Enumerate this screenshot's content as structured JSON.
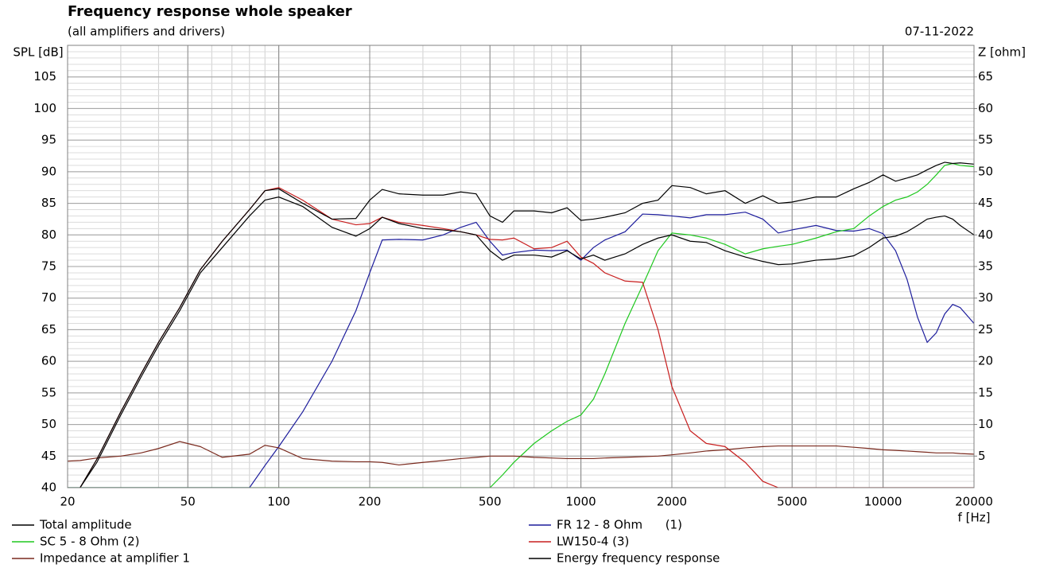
{
  "chart_data": {
    "type": "line",
    "title": "Frequency response whole speaker",
    "subtitle": "(all amplifiers and drivers)",
    "date": "07-11-2022",
    "x_label": "f [Hz]",
    "y_label": "SPL [dB]",
    "y2_label": "Z [ohm]",
    "log_x": true,
    "grid": true,
    "legend": "bottom",
    "xlim": [
      20,
      20000
    ],
    "xticks": [
      20,
      50,
      100,
      200,
      500,
      1000,
      2000,
      5000,
      10000,
      20000
    ],
    "ylim": [
      40,
      110
    ],
    "yticks": [
      40,
      45,
      50,
      55,
      60,
      65,
      70,
      75,
      80,
      85,
      90,
      95,
      100,
      105
    ],
    "y2lim": [
      0,
      70
    ],
    "y2ticks": [
      5,
      10,
      15,
      20,
      25,
      30,
      35,
      40,
      45,
      50,
      55,
      60,
      65
    ],
    "x": [
      20,
      22,
      25,
      30,
      35,
      40,
      47,
      55,
      65,
      80,
      90,
      100,
      120,
      150,
      180,
      200,
      220,
      250,
      300,
      350,
      400,
      450,
      500,
      550,
      600,
      700,
      800,
      900,
      1000,
      1100,
      1200,
      1400,
      1600,
      1800,
      2000,
      2300,
      2600,
      3000,
      3500,
      4000,
      4500,
      5000,
      6000,
      7000,
      8000,
      9000,
      10000,
      11000,
      12000,
      13000,
      14000,
      15000,
      16000,
      17000,
      18000,
      20000
    ],
    "series": [
      {
        "name": "Total amplitude",
        "color": "#000000",
        "values": [
          null,
          40,
          44.5,
          52,
          58,
          63,
          68.5,
          74.5,
          79,
          84,
          87,
          87.3,
          85,
          82.5,
          82.6,
          85.5,
          87.2,
          86.5,
          86.3,
          86.3,
          86.8,
          86.5,
          83,
          82,
          83.8,
          83.8,
          83.5,
          84.3,
          82.3,
          82.5,
          82.8,
          83.5,
          85,
          85.5,
          87.8,
          87.5,
          86.5,
          87,
          85,
          86.2,
          85,
          85.2,
          86,
          86,
          87.3,
          88.3,
          89.5,
          88.5,
          89,
          89.5,
          90.3,
          91,
          91.5,
          91.3,
          91.4,
          91.2
        ]
      },
      {
        "name": "FR 12 - 8 Ohm      (1)",
        "color": "#1c1c9c",
        "values": [
          40,
          40,
          40,
          40,
          40,
          40,
          40,
          40,
          40,
          40,
          43.5,
          46.5,
          52,
          60,
          68,
          74,
          79.2,
          79.3,
          79.2,
          80,
          81.2,
          82,
          79,
          76.8,
          77.2,
          77.6,
          77.5,
          77.6,
          76,
          78,
          79.2,
          80.5,
          83.3,
          83.2,
          83,
          82.7,
          83.2,
          83.2,
          83.6,
          82.5,
          80.3,
          80.8,
          81.5,
          80.7,
          80.6,
          81,
          80.2,
          77.5,
          73,
          67,
          63,
          64.5,
          67.5,
          69,
          68.5,
          66
        ]
      },
      {
        "name": "SC 5 - 8 Ohm (2)",
        "color": "#1ec81e",
        "values": [
          40,
          40,
          40,
          40,
          40,
          40,
          40,
          40,
          40,
          40,
          40,
          40,
          40,
          40,
          40,
          40,
          40,
          40,
          40,
          40,
          40,
          40,
          40,
          42,
          44,
          47,
          49,
          50.5,
          51.5,
          54,
          58,
          66,
          72,
          77.5,
          80.3,
          80,
          79.5,
          78.5,
          77,
          77.8,
          78.2,
          78.5,
          79.5,
          80.5,
          81,
          83,
          84.5,
          85.5,
          86,
          86.8,
          88,
          89.5,
          91,
          91.3,
          91,
          90.8
        ]
      },
      {
        "name": "LW150-4 (3)",
        "color": "#c81e1e",
        "values": [
          null,
          40,
          44.5,
          52,
          58,
          63,
          68.5,
          74.5,
          79,
          84,
          87,
          87.5,
          85.5,
          82.5,
          81.6,
          81.8,
          82.8,
          82,
          81.5,
          81,
          80.5,
          80,
          79.3,
          79.2,
          79.5,
          77.8,
          78,
          79,
          76.5,
          75.5,
          74,
          72.7,
          72.5,
          65,
          56,
          49,
          47,
          46.5,
          44,
          41,
          40,
          40,
          40,
          40,
          40,
          40,
          40,
          40,
          40,
          40,
          40,
          40,
          40,
          40,
          40,
          40
        ]
      },
      {
        "name": "Impedance at amplifier 1",
        "color": "#7a2a1e",
        "axis": "y2",
        "values": [
          4.2,
          4.3,
          4.7,
          5,
          5.5,
          6.2,
          7.3,
          6.5,
          4.8,
          5.3,
          6.7,
          6.3,
          4.6,
          4.2,
          4.1,
          4.1,
          4,
          3.6,
          4,
          4.3,
          4.6,
          4.8,
          5,
          5,
          5,
          4.8,
          4.7,
          4.6,
          4.6,
          4.6,
          4.7,
          4.8,
          4.9,
          5,
          5.2,
          5.5,
          5.8,
          6,
          6.3,
          6.5,
          6.6,
          6.6,
          6.6,
          6.6,
          6.4,
          6.2,
          6,
          5.9,
          5.8,
          5.7,
          5.6,
          5.5,
          5.5,
          5.5,
          5.4,
          5.3
        ]
      },
      {
        "name": "Energy frequency response",
        "color": "#000000",
        "values": [
          null,
          40,
          44,
          51.5,
          57.5,
          62.5,
          68,
          74,
          78,
          83,
          85.5,
          86,
          84.5,
          81.2,
          79.8,
          81,
          82.8,
          81.8,
          81,
          80.8,
          80.5,
          80,
          77.5,
          76,
          76.8,
          76.8,
          76.5,
          77.5,
          76.2,
          76.8,
          76,
          77,
          78.5,
          79.5,
          80,
          79,
          78.8,
          77.5,
          76.5,
          75.8,
          75.3,
          75.4,
          76,
          76.2,
          76.7,
          78,
          79.5,
          79.8,
          80.5,
          81.5,
          82.5,
          82.8,
          83,
          82.5,
          81.5,
          80
        ]
      }
    ]
  }
}
